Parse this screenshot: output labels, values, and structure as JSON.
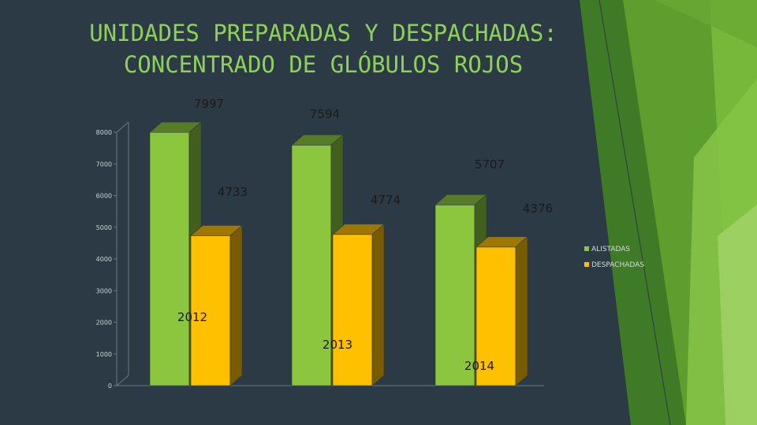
{
  "slide": {
    "title_line1": "UNIDADES PREPARADAS Y DESPACHADAS:",
    "title_line2": "CONCENTRADO DE GLÓBULOS ROJOS"
  },
  "colors": {
    "background": "#2b3a45",
    "accent_green": "#8fd05a",
    "series_alistadas": "#8cc63f",
    "series_despachadas": "#ffc000"
  },
  "chart_data": {
    "type": "bar",
    "categories": [
      "2012",
      "2013",
      "2014"
    ],
    "series": [
      {
        "name": "ALISTADAS",
        "values": [
          7997,
          7594,
          5707
        ],
        "color": "#8cc63f"
      },
      {
        "name": "DESPACHADAS",
        "values": [
          4733,
          4774,
          4376
        ],
        "color": "#ffc000"
      }
    ],
    "y_ticks": [
      "0",
      "1000",
      "2000",
      "3000",
      "4000",
      "5000",
      "6000",
      "7000",
      "8000"
    ],
    "data_labels": {
      "ALISTADAS": [
        "7997",
        "7594",
        "5707"
      ],
      "DESPACHADAS": [
        "4733",
        "4774",
        "4376"
      ]
    },
    "ylim": [
      0,
      8000
    ],
    "grid": false,
    "legend": "right",
    "style": "3d-column"
  }
}
